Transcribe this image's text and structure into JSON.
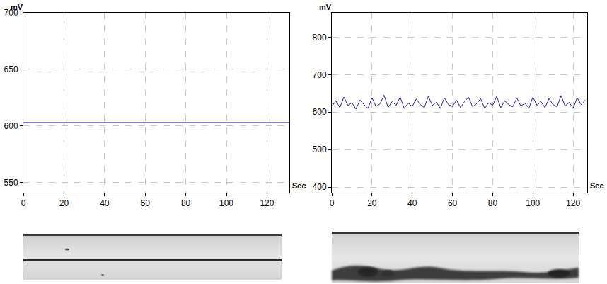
{
  "chart_data": [
    {
      "type": "line",
      "x_label": "Sec",
      "y_label": "mV",
      "color": "#1f1fa8",
      "grid": true,
      "x": [
        0,
        131
      ],
      "values": [
        603,
        603
      ],
      "xlim": [
        0,
        131
      ],
      "ylim": [
        541,
        700
      ],
      "xticks": [
        0,
        20,
        40,
        60,
        80,
        100,
        120
      ],
      "yticks": [
        550,
        600,
        650,
        700
      ]
    },
    {
      "type": "line",
      "x_label": "Sec",
      "y_label": "mV",
      "color": "#1f1fa8",
      "grid": true,
      "x": [
        0,
        2,
        4,
        6,
        8,
        10,
        12,
        14,
        16,
        18,
        20,
        22,
        24,
        26,
        28,
        30,
        32,
        34,
        36,
        38,
        40,
        42,
        44,
        46,
        48,
        50,
        52,
        54,
        56,
        58,
        60,
        62,
        64,
        66,
        68,
        70,
        72,
        74,
        76,
        78,
        80,
        82,
        84,
        86,
        88,
        90,
        92,
        94,
        96,
        98,
        100,
        102,
        104,
        106,
        108,
        110,
        112,
        114,
        116,
        118,
        120,
        122,
        124,
        126
      ],
      "values": [
        615,
        630,
        612,
        640,
        618,
        625,
        608,
        632,
        620,
        610,
        638,
        615,
        622,
        645,
        612,
        628,
        618,
        640,
        610,
        624,
        615,
        635,
        620,
        612,
        642,
        618,
        626,
        610,
        638,
        620,
        615,
        632,
        612,
        628,
        640,
        614,
        622,
        636,
        610,
        625,
        618,
        642,
        612,
        630,
        620,
        614,
        638,
        616,
        624,
        610,
        640,
        618,
        628,
        612,
        636,
        620,
        614,
        644,
        616,
        626,
        610,
        638,
        620,
        632
      ],
      "xlim": [
        0,
        127
      ],
      "ylim": [
        385,
        865
      ],
      "xticks": [
        0,
        20,
        40,
        60,
        80,
        100,
        120
      ],
      "yticks": [
        400,
        500,
        600,
        700,
        800
      ]
    }
  ]
}
